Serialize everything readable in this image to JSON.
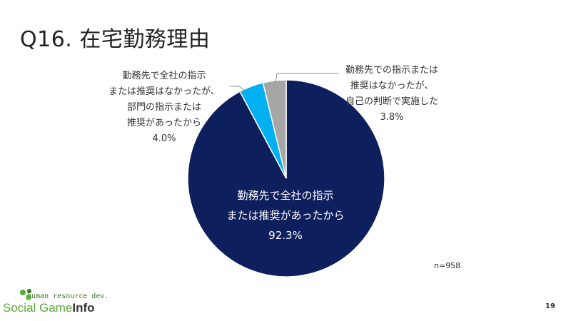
{
  "slide": {
    "title": "Q16. 在宅勤務理由",
    "sample_size": "n=958",
    "page_number": "19"
  },
  "labels": {
    "left": "勤務先で全社の指示\nまたは推奨はなかったが、\n部門の指示または\n推奨があったから\n4.0%",
    "right": "勤務先での指示または\n推奨はなかったが、\n自己の判断で実施した\n3.8%",
    "center": "勤務先で全社の指示\nまたは推奨があったから\n92.3%"
  },
  "logo": {
    "tagline": "human resource dev.",
    "social": "Social",
    "game": "Game",
    "info": "Info"
  },
  "chart_data": {
    "type": "pie",
    "title": "",
    "start_angle_deg": 0,
    "direction": "clockwise",
    "slices": [
      {
        "label": "勤務先で全社の指示または推奨があったから",
        "value": 92.3,
        "color": "#0d1f5c"
      },
      {
        "label": "勤務先で全社の指示または推奨はなかったが、部門の指示または推奨があったから",
        "value": 4.0,
        "color": "#00b0f0"
      },
      {
        "label": "勤務先での指示または推奨はなかったが、自己の判断で実施した",
        "value": 3.8,
        "color": "#a6a6a6"
      }
    ]
  }
}
